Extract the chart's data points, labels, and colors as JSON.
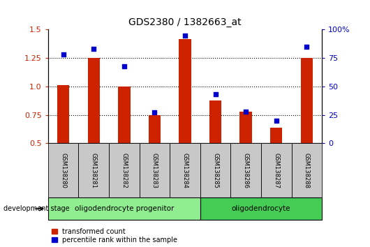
{
  "title": "GDS2380 / 1382663_at",
  "samples": [
    "GSM138280",
    "GSM138281",
    "GSM138282",
    "GSM138283",
    "GSM138284",
    "GSM138285",
    "GSM138286",
    "GSM138287",
    "GSM138288"
  ],
  "red_values": [
    1.01,
    1.25,
    1.0,
    0.75,
    1.42,
    0.875,
    0.78,
    0.635,
    1.25
  ],
  "blue_values": [
    78,
    83,
    68,
    27,
    95,
    43,
    28,
    20,
    85
  ],
  "ylim_left": [
    0.5,
    1.5
  ],
  "ylim_right": [
    0,
    100
  ],
  "yticks_left": [
    0.5,
    0.75,
    1.0,
    1.25,
    1.5
  ],
  "yticks_right": [
    0,
    25,
    50,
    75,
    100
  ],
  "ytick_labels_right": [
    "0",
    "25",
    "50",
    "75",
    "100%"
  ],
  "groups": [
    {
      "label": "oligodendrocyte progenitor",
      "start": 0,
      "end": 5,
      "color": "#90EE90"
    },
    {
      "label": "oligodendrocyte",
      "start": 5,
      "end": 9,
      "color": "#44CC55"
    }
  ],
  "red_color": "#CC2200",
  "blue_color": "#0000CC",
  "label_bg_color": "#C8C8C8",
  "dev_stage_label": "development stage",
  "legend_red": "transformed count",
  "legend_blue": "percentile rank within the sample"
}
